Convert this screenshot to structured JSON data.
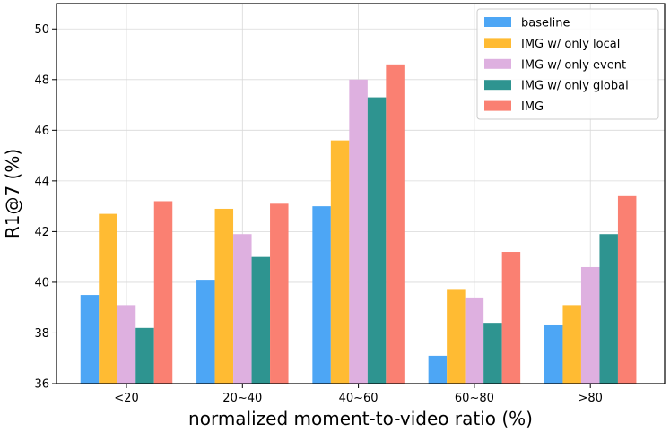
{
  "chart_data": {
    "type": "bar",
    "title": "",
    "xlabel": "normalized moment-to-video ratio (%)",
    "ylabel": "R1@7 (%)",
    "ylim": [
      36,
      51
    ],
    "yticks": [
      36,
      38,
      40,
      42,
      44,
      46,
      48,
      50
    ],
    "grid": true,
    "legend_position": "top-right",
    "categories": [
      "<20",
      "20~40",
      "40~60",
      "60~80",
      ">80"
    ],
    "series": [
      {
        "name": "baseline",
        "color": "#4da6f5",
        "values": [
          39.5,
          40.1,
          43.0,
          37.1,
          38.3
        ]
      },
      {
        "name": "IMG w/ only local",
        "color": "#ffbb33",
        "values": [
          42.7,
          42.9,
          45.6,
          39.7,
          39.1
        ]
      },
      {
        "name": "IMG w/ only event",
        "color": "#deb0e0",
        "values": [
          39.1,
          41.9,
          48.0,
          39.4,
          40.6
        ]
      },
      {
        "name": "IMG w/ only global",
        "color": "#2e9490",
        "values": [
          38.2,
          41.0,
          47.3,
          38.4,
          41.9
        ]
      },
      {
        "name": "IMG",
        "color": "#fa8072",
        "values": [
          43.2,
          43.1,
          48.6,
          41.2,
          43.4
        ]
      }
    ]
  }
}
